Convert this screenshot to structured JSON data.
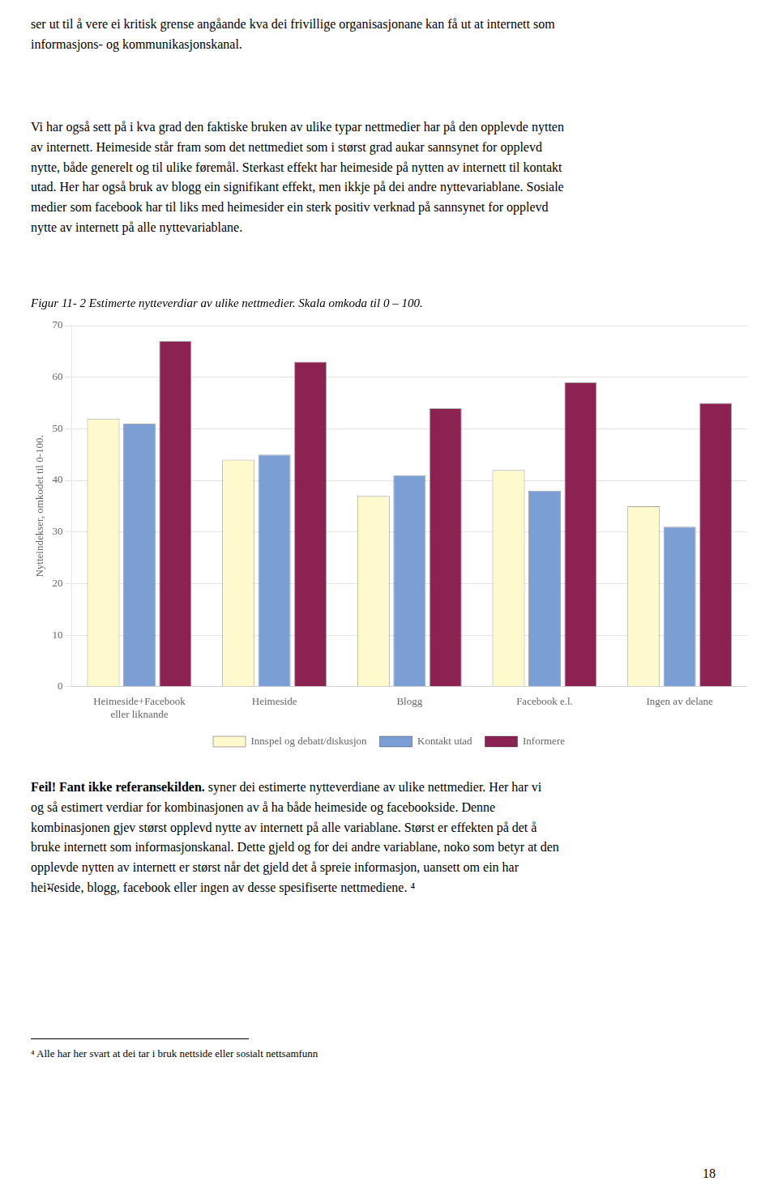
{
  "chart_data": {
    "type": "bar",
    "title": "Figur 11- 2 Estimerte nytteverdiar av ulike nettmedier. Skala omkoda til 0 – 100.",
    "categories": [
      "Heimeside+Facebook\neller liknande",
      "Heimeside",
      "Blogg",
      "Facebook e.l.",
      "Ingen av delane"
    ],
    "series": [
      {
        "name": "Innspel og debatt/diskusjon",
        "values": [
          52,
          44,
          37,
          42,
          35
        ],
        "color": "#FFFACD"
      },
      {
        "name": "Kontakt utad",
        "values": [
          51,
          45,
          41,
          38,
          31
        ],
        "color": "#7B9FD4"
      },
      {
        "name": "Informere",
        "values": [
          67,
          63,
          54,
          59,
          55
        ],
        "color": "#8B2252"
      }
    ],
    "ylabel": "Nytteindekser, omkodet til 0-100.",
    "ylim": [
      0,
      70
    ],
    "yticks": [
      0,
      10,
      20,
      30,
      40,
      50,
      60,
      70
    ],
    "grid": true,
    "legend": "bottom",
    "annotations": [
      "ser ut til å vere ei kritisk grense angåande kva dei frivillige organisasjonane kan få ut at internett som\ninformasjons- og kommunikasjonskanal.",
      "Vi har også sett på i kva grad den faktiske bruken av ulike typar nettmedier har på den opplevde nytten\nav internett. Heimeside står fram som det nettmediet som i størst grad aukar sannsynet for opplevd\nnytte, både generelt og til ulike føremål. Sterkast effekt har heimeside på nytten av internett til kontakt\nutad. Her har også bruk av blogg ein signifikant effekt, men ikkje på dei andre nyttevariablane. Sosiale\nmedier som facebook har til liks med heimesider ein sterk positiv verknad på sannsynet for opplevd\nnytte av internett på alle nyttevariablane.",
      "Feil! Fant ikke referansekilden.",
      " syner dei estimerte nytteverdiane av ulike nettmedier. Her har vi\nog så estimert verdiar for kombinasjonen av å ha både heimeside og facebookside. Denne\nkombinasjonen gjev størst opplevd nytte av internett på alle variablane. Størst er effekten på det å\nbruke internett som informasjonskanal. Dette gjeld og for dei andre variablane, noko som betyr at den\nopplevde nytten av internett er størst når det gjeld det å spreie informasjon, uansett om ein har\nheiমeside, blogg, facebook eller ingen av desse spesifiserte nettmediene. ⁴",
      "⁴ Alle har her svart at dei tar i bruk nettside eller sosialt nettsamfunn",
      "18"
    ]
  }
}
